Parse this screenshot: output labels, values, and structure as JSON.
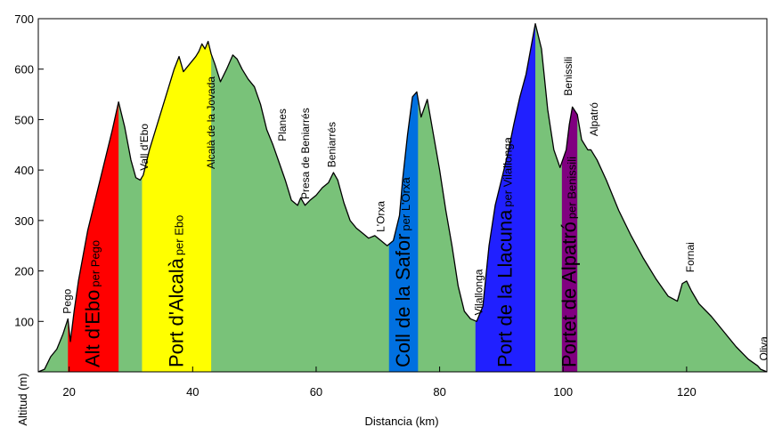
{
  "chart_data": {
    "type": "area",
    "title": "",
    "xlabel": "Distancia (km)",
    "ylabel": "Altitud (m)",
    "xlim": [
      15,
      133
    ],
    "ylim": [
      0,
      700
    ],
    "xticks": [
      20,
      40,
      60,
      80,
      100,
      120
    ],
    "yticks": [
      100,
      200,
      300,
      400,
      500,
      600,
      700
    ],
    "grid": false,
    "profile": {
      "color": "#79c279",
      "x": [
        15,
        16,
        17,
        18,
        19,
        19.8,
        20.2,
        20.8,
        21.5,
        23,
        25,
        27,
        28,
        29,
        30,
        30.8,
        31.5,
        32,
        33,
        34.5,
        36,
        37,
        37.8,
        38.5,
        39.5,
        40.5,
        41,
        41.5,
        42,
        42.5,
        43,
        43.6,
        44.5,
        45.5,
        46.5,
        47.2,
        48,
        49,
        50,
        51,
        52,
        53,
        54,
        55,
        56,
        57,
        57.5,
        58.2,
        59,
        60,
        61,
        62,
        62.8,
        63.5,
        64.5,
        65.5,
        66.5,
        67.5,
        68.5,
        69.5,
        70.5,
        71.5,
        72.5,
        73.5,
        74,
        74.8,
        75.6,
        76.3,
        77,
        78,
        79,
        80,
        81,
        82,
        83,
        84,
        85,
        86,
        87,
        88,
        89,
        90,
        91,
        92,
        93,
        94,
        95.5,
        96.5,
        97.5,
        98.5,
        99.5,
        100.5,
        101,
        101.5,
        102.3,
        103,
        104,
        104.5,
        105.5,
        107,
        109,
        111,
        113,
        115,
        117,
        118.5,
        119.3,
        120,
        120.8,
        122,
        124,
        126,
        128,
        130,
        131.5,
        132,
        133
      ],
      "y": [
        0,
        5,
        30,
        45,
        75,
        105,
        60,
        120,
        180,
        280,
        380,
        480,
        535,
        485,
        420,
        385,
        380,
        390,
        440,
        500,
        560,
        600,
        625,
        595,
        610,
        625,
        635,
        650,
        640,
        655,
        630,
        610,
        575,
        600,
        628,
        620,
        600,
        580,
        565,
        530,
        480,
        450,
        415,
        380,
        340,
        330,
        345,
        330,
        340,
        350,
        365,
        375,
        395,
        380,
        335,
        300,
        285,
        275,
        265,
        270,
        260,
        250,
        260,
        310,
        380,
        470,
        545,
        555,
        505,
        540,
        470,
        400,
        320,
        250,
        170,
        120,
        105,
        100,
        130,
        250,
        330,
        380,
        430,
        490,
        545,
        590,
        690,
        640,
        520,
        440,
        405,
        440,
        490,
        525,
        510,
        460,
        440,
        440,
        420,
        380,
        320,
        270,
        225,
        185,
        150,
        140,
        175,
        180,
        160,
        135,
        110,
        80,
        50,
        25,
        12,
        5,
        0
      ]
    },
    "climbs": [
      {
        "name": "Alt d'Ebo",
        "sub": "per Pego",
        "x_start": 19.8,
        "x_end": 28.0,
        "color": "#ff0000",
        "text_color": "#000000"
      },
      {
        "name": "Port d'Alcalà",
        "sub": "per Ebo",
        "x_start": 31.8,
        "x_end": 43.0,
        "color": "#ffff00",
        "text_color": "#000000"
      },
      {
        "name": "Coll de la Safor",
        "sub": "per L'Orxa",
        "x_start": 71.8,
        "x_end": 76.5,
        "color": "#0070e0",
        "text_color": "#000000"
      },
      {
        "name": "Port de la Llacuna",
        "sub": "per Vilallonga",
        "x_start": 85.8,
        "x_end": 95.5,
        "color": "#2020ff",
        "text_color": "#000000"
      },
      {
        "name": "Portet de Alpatró",
        "sub": "per Benissili",
        "x_start": 99.8,
        "x_end": 102.3,
        "color": "#800080",
        "text_color": "#000000"
      }
    ],
    "places": [
      {
        "name": "Pego",
        "x": 19.7,
        "y": 108
      },
      {
        "name": "Vall d'Ebo",
        "x": 32.2,
        "y": 392
      },
      {
        "name": "Alcalà de la Jovada",
        "x": 43.0,
        "y": 395
      },
      {
        "name": "Planes",
        "x": 54.5,
        "y": 450
      },
      {
        "name": "Presa de Beniarrés",
        "x": 58.3,
        "y": 335
      },
      {
        "name": "Beniarrés",
        "x": 62.5,
        "y": 398
      },
      {
        "name": "L'Orxa",
        "x": 70.5,
        "y": 270
      },
      {
        "name": "Vilallonga",
        "x": 86.3,
        "y": 105
      },
      {
        "name": "Benissili",
        "x": 100.8,
        "y": 540
      },
      {
        "name": "Alpatró",
        "x": 105.0,
        "y": 460
      },
      {
        "name": "Fornai",
        "x": 120.6,
        "y": 190
      },
      {
        "name": "Oliva",
        "x": 132.5,
        "y": 15
      }
    ]
  }
}
